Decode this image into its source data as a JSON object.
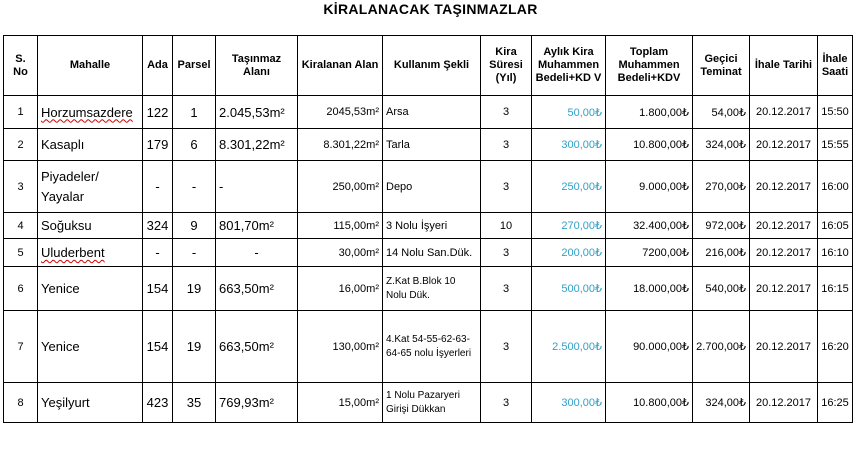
{
  "title": "KİRALANACAK TAŞINMAZLAR",
  "headers": {
    "sno": "S. No",
    "mahalle": "Mahalle",
    "ada": "Ada",
    "parsel": "Parsel",
    "alan": "Taşınmaz Alanı",
    "kiralanan": "Kiralanan Alan",
    "kullanim": "Kullanım Şekli",
    "sure": "Kira Süresi (Yıl)",
    "aylik": "Aylık Kira Muhammen Bedeli+KD V",
    "toplam": "Toplam Muhammen Bedeli+KDV",
    "teminat": "Geçici Teminat",
    "tarih": "İhale Tarihi",
    "saat": "İhale Saati"
  },
  "rows": [
    {
      "sno": "1",
      "mahalle": "Horzumsazdere",
      "ada": "122",
      "parsel": "1",
      "alan": "2.045,53m²",
      "kiralanan": "2045,53m²",
      "kullanim": "Arsa",
      "sure": "3",
      "aylik": "50,00₺",
      "toplam": "1.800,00₺",
      "teminat": "54,00₺",
      "tarih": "20.12.2017",
      "saat": "15:50"
    },
    {
      "sno": "2",
      "mahalle": "Kasaplı",
      "ada": "179",
      "parsel": "6",
      "alan": "8.301,22m²",
      "kiralanan": "8.301,22m²",
      "kullanim": "Tarla",
      "sure": "3",
      "aylik": "300,00₺",
      "toplam": "10.800,00₺",
      "teminat": "324,00₺",
      "tarih": "20.12.2017",
      "saat": "15:55"
    },
    {
      "sno": "3",
      "mahalle": "Piyadeler/ Yayalar",
      "ada": "-",
      "parsel": "-",
      "alan": "-",
      "kiralanan": "250,00m²",
      "kullanim": "Depo",
      "sure": "3",
      "aylik": "250,00₺",
      "toplam": "9.000,00₺",
      "teminat": "270,00₺",
      "tarih": "20.12.2017",
      "saat": "16:00"
    },
    {
      "sno": "4",
      "mahalle": "Soğuksu",
      "ada": "324",
      "parsel": "9",
      "alan": "801,70m²",
      "kiralanan": "115,00m²",
      "kullanim": "3 Nolu İşyeri",
      "sure": "10",
      "aylik": "270,00₺",
      "toplam": "32.400,00₺",
      "teminat": "972,00₺",
      "tarih": "20.12.2017",
      "saat": "16:05"
    },
    {
      "sno": "5",
      "mahalle": "Uluderbent",
      "ada": "-",
      "parsel": "-",
      "alan": "-",
      "kiralanan": "30,00m²",
      "kullanim": "14 Nolu San.Dük.",
      "sure": "3",
      "aylik": "200,00₺",
      "toplam": "7200,00₺",
      "teminat": "216,00₺",
      "tarih": "20.12.2017",
      "saat": "16:10"
    },
    {
      "sno": "6",
      "mahalle": "Yenice",
      "ada": "154",
      "parsel": "19",
      "alan": "663,50m²",
      "kiralanan": "16,00m²",
      "kullanim": "Z.Kat B.Blok 10 Nolu Dük.",
      "sure": "3",
      "aylik": "500,00₺",
      "toplam": "18.000,00₺",
      "teminat": "540,00₺",
      "tarih": "20.12.2017",
      "saat": "16:15"
    },
    {
      "sno": "7",
      "mahalle": "Yenice",
      "ada": "154",
      "parsel": "19",
      "alan": "663,50m²",
      "kiralanan": "130,00m²",
      "kullanim": "4.Kat 54-55-62-63-64-65 nolu İşyerleri",
      "sure": "3",
      "aylik": "2.500,00₺",
      "toplam": "90.000,00₺",
      "teminat": "2.700,00₺",
      "tarih": "20.12.2017",
      "saat": "16:20"
    },
    {
      "sno": "8",
      "mahalle": "Yeşilyurt",
      "ada": "423",
      "parsel": "35",
      "alan": "769,93m²",
      "kiralanan": "15,00m²",
      "kullanim": "1 Nolu Pazaryeri Girişi Dükkan",
      "sure": "3",
      "aylik": "300,00₺",
      "toplam": "10.800,00₺",
      "teminat": "324,00₺",
      "tarih": "20.12.2017",
      "saat": "16:25"
    }
  ],
  "colors": {
    "aylik_text": "#31a0c8"
  }
}
